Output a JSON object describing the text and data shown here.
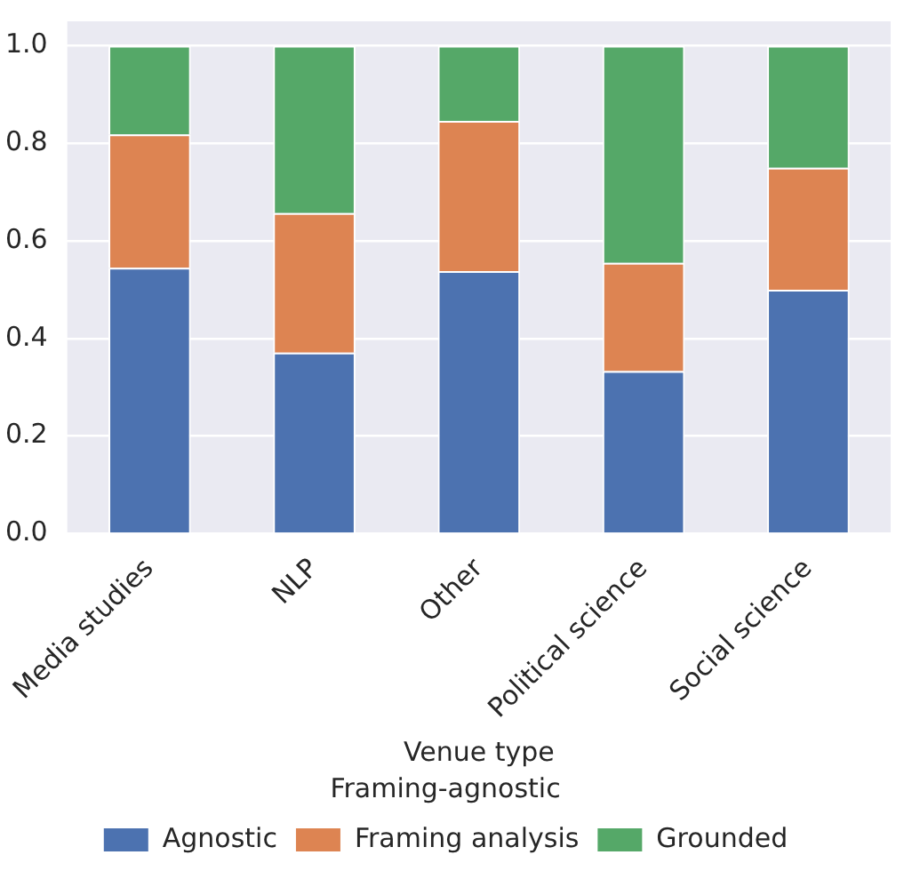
{
  "chart_data": {
    "type": "bar",
    "stacked": true,
    "xlabel": "Venue type",
    "legend_title": "Framing-agnostic",
    "legend": "bottom",
    "categories": [
      "Media studies",
      "NLP",
      "Other",
      "Political science",
      "Social science"
    ],
    "series": [
      {
        "name": "Agnostic",
        "color": "#4c72b0",
        "values": [
          0.545,
          0.371,
          0.538,
          0.333,
          0.5
        ]
      },
      {
        "name": "Framing analysis",
        "color": "#dd8452",
        "values": [
          0.273,
          0.286,
          0.308,
          0.222,
          0.25
        ]
      },
      {
        "name": "Grounded",
        "color": "#55a868",
        "values": [
          0.182,
          0.343,
          0.154,
          0.445,
          0.25
        ]
      }
    ],
    "ylim": [
      0,
      1.05
    ],
    "yticks": [
      {
        "value": 0,
        "label": "0.0"
      },
      {
        "value": 0.2,
        "label": "0.2"
      },
      {
        "value": 0.4,
        "label": "0.4"
      },
      {
        "value": 0.6,
        "label": "0.6"
      },
      {
        "value": 0.8,
        "label": "0.8"
      },
      {
        "value": 1,
        "label": "1.0"
      }
    ],
    "grid": "y"
  }
}
